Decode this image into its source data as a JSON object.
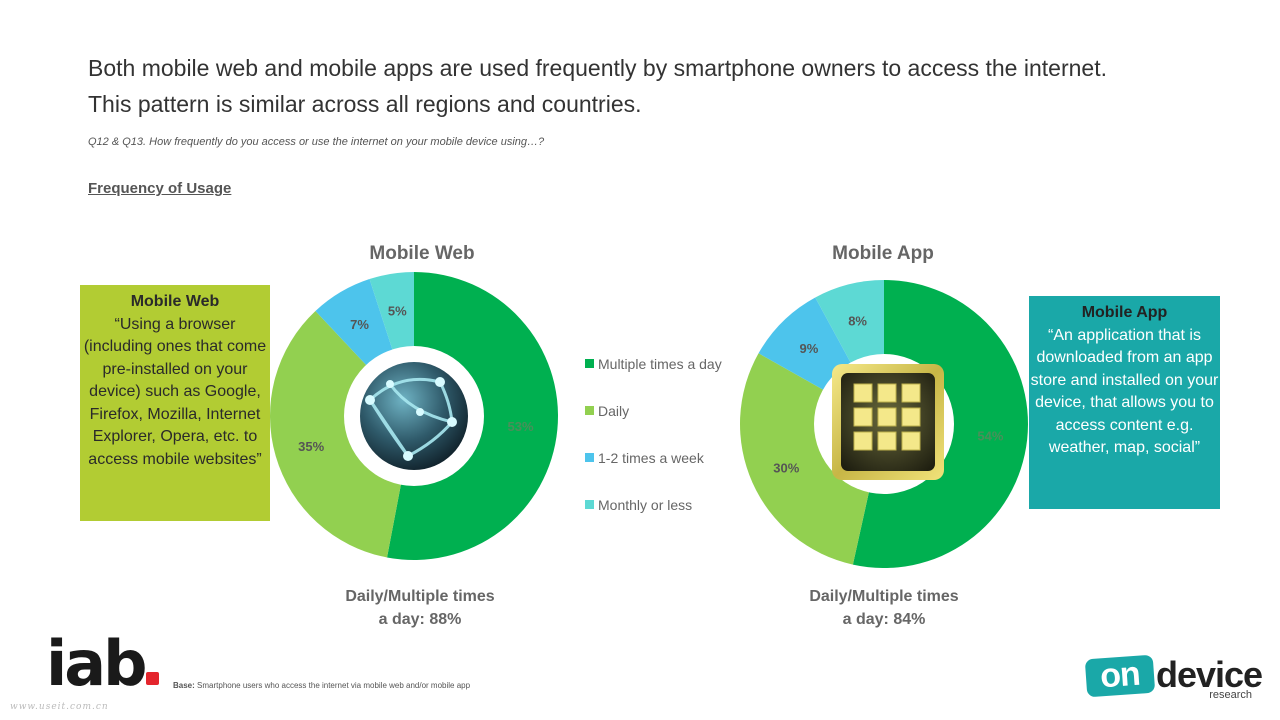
{
  "header": {
    "headline_line1": "Both mobile web and mobile apps are used frequently by smartphone owners to access the internet.",
    "headline_line2": "This pattern is similar across all regions and countries.",
    "question": "Q12 & Q13. How frequently do you access or use the internet on your mobile device using…?",
    "section_title": "Frequency of Usage"
  },
  "colors": {
    "multiple": "#00b050",
    "daily": "#92d050",
    "weekly": "#4dc4ec",
    "monthly": "#5dd9d4"
  },
  "chart_data": [
    {
      "type": "pie",
      "title": "Mobile Web",
      "categories": [
        "Multiple times a day",
        "Daily",
        "1-2 times a week",
        "Monthly or less"
      ],
      "values": [
        53,
        35,
        7,
        5
      ],
      "labels": [
        "53%",
        "35%",
        "7%",
        "5%"
      ]
    },
    {
      "type": "pie",
      "title": "Mobile App",
      "categories": [
        "Multiple times a day",
        "Daily",
        "1-2 times a week",
        "Monthly or less"
      ],
      "values": [
        54,
        30,
        9,
        8
      ],
      "labels": [
        "54%",
        "30%",
        "9%",
        "8%"
      ]
    }
  ],
  "legend": {
    "items": [
      "Multiple times a day",
      "Daily",
      "1-2 times a week",
      "Monthly or less"
    ]
  },
  "definitions": {
    "web_heading": "Mobile Web",
    "web_text": "“Using a browser (including ones that come pre-installed on your device)  such as Google, Firefox, Mozilla, Internet Explorer, Opera,  etc. to access mobile websites”",
    "app_heading": "Mobile App",
    "app_text": "“An application that is downloaded from an app store and installed on your device, that allows you to access content e.g. weather, map, social”"
  },
  "summaries": {
    "web_line1": "Daily/Multiple times",
    "web_line2": "a day: 88%",
    "app_line1": "Daily/Multiple times",
    "app_line2": "a day: 84%"
  },
  "footer": {
    "base_label": "Base:",
    "base_text": "Smartphone users who access the internet via mobile web and/or mobile app",
    "iab_logo": "iab",
    "watermark": "www.useit.com.cn",
    "od_on": "on",
    "od_device": "device",
    "od_research": "research"
  }
}
